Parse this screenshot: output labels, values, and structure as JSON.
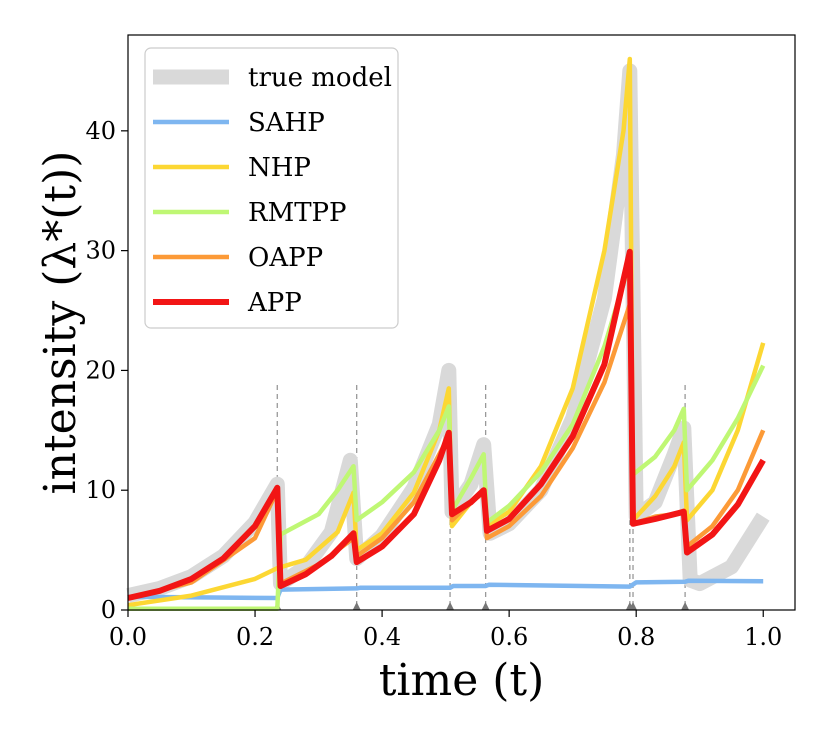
{
  "chart_data": {
    "type": "line",
    "title": "",
    "xlabel": "time (t)",
    "ylabel": "intensity (λ*(t))",
    "xlim": [
      0.0,
      1.05
    ],
    "ylim": [
      0,
      48
    ],
    "xticks": [
      0.0,
      0.2,
      0.4,
      0.6,
      0.8,
      1.0
    ],
    "xtick_labels": [
      "0.0",
      "0.2",
      "0.4",
      "0.6",
      "0.8",
      "1.0"
    ],
    "yticks": [
      0,
      10,
      20,
      30,
      40
    ],
    "ytick_labels": [
      "0",
      "10",
      "20",
      "30",
      "40"
    ],
    "grid": false,
    "legend_position": "top-left",
    "event_times": [
      0.235,
      0.36,
      0.507,
      0.563,
      0.79,
      0.795,
      0.877
    ],
    "series": [
      {
        "name": "true model",
        "color": "#d9d9d9",
        "style": "thick",
        "points": [
          [
            0.0,
            1.2
          ],
          [
            0.05,
            1.8
          ],
          [
            0.1,
            2.8
          ],
          [
            0.15,
            4.5
          ],
          [
            0.2,
            7.3
          ],
          [
            0.235,
            10.5
          ],
          [
            0.24,
            2.2
          ],
          [
            0.28,
            3.6
          ],
          [
            0.32,
            6.5
          ],
          [
            0.35,
            12.5
          ],
          [
            0.36,
            4.3
          ],
          [
            0.4,
            6.2
          ],
          [
            0.45,
            10.2
          ],
          [
            0.49,
            15.5
          ],
          [
            0.505,
            20.0
          ],
          [
            0.51,
            8.2
          ],
          [
            0.54,
            10.5
          ],
          [
            0.56,
            13.8
          ],
          [
            0.57,
            6.4
          ],
          [
            0.6,
            7.2
          ],
          [
            0.65,
            10.0
          ],
          [
            0.7,
            16.0
          ],
          [
            0.75,
            26.0
          ],
          [
            0.78,
            38.0
          ],
          [
            0.79,
            45.0
          ],
          [
            0.8,
            7.8
          ],
          [
            0.83,
            9.0
          ],
          [
            0.86,
            13.0
          ],
          [
            0.875,
            15.2
          ],
          [
            0.885,
            2.5
          ],
          [
            0.9,
            2.2
          ],
          [
            0.95,
            3.6
          ],
          [
            1.0,
            7.8
          ]
        ]
      },
      {
        "name": "SAHP",
        "color": "#7eb6f0",
        "style": "normal",
        "points": [
          [
            0.0,
            1.1
          ],
          [
            0.235,
            1.0
          ],
          [
            0.24,
            1.7
          ],
          [
            0.36,
            1.8
          ],
          [
            0.365,
            1.85
          ],
          [
            0.507,
            1.85
          ],
          [
            0.512,
            2.0
          ],
          [
            0.563,
            2.0
          ],
          [
            0.568,
            2.1
          ],
          [
            0.79,
            1.95
          ],
          [
            0.8,
            2.3
          ],
          [
            0.877,
            2.35
          ],
          [
            0.882,
            2.45
          ],
          [
            1.0,
            2.4
          ]
        ]
      },
      {
        "name": "NHP",
        "color": "#fcd733",
        "style": "normal",
        "points": [
          [
            0.0,
            0.4
          ],
          [
            0.1,
            1.2
          ],
          [
            0.2,
            2.6
          ],
          [
            0.235,
            3.5
          ],
          [
            0.28,
            4.2
          ],
          [
            0.33,
            6.5
          ],
          [
            0.355,
            9.8
          ],
          [
            0.36,
            5.0
          ],
          [
            0.4,
            6.4
          ],
          [
            0.45,
            9.8
          ],
          [
            0.49,
            15.0
          ],
          [
            0.505,
            18.5
          ],
          [
            0.51,
            7.0
          ],
          [
            0.54,
            9.0
          ],
          [
            0.56,
            10.0
          ],
          [
            0.565,
            7.0
          ],
          [
            0.6,
            8.2
          ],
          [
            0.65,
            12.0
          ],
          [
            0.7,
            18.5
          ],
          [
            0.75,
            30.0
          ],
          [
            0.78,
            40.0
          ],
          [
            0.79,
            46.0
          ],
          [
            0.795,
            7.5
          ],
          [
            0.83,
            9.5
          ],
          [
            0.86,
            12.0
          ],
          [
            0.875,
            14.0
          ],
          [
            0.88,
            7.5
          ],
          [
            0.92,
            10.0
          ],
          [
            0.96,
            15.0
          ],
          [
            1.0,
            22.3
          ]
        ]
      },
      {
        "name": "RMTPP",
        "color": "#bff774",
        "style": "normal",
        "points": [
          [
            0.0,
            0.1
          ],
          [
            0.235,
            0.1
          ],
          [
            0.24,
            6.3
          ],
          [
            0.3,
            8.0
          ],
          [
            0.33,
            10.0
          ],
          [
            0.355,
            12.0
          ],
          [
            0.36,
            7.5
          ],
          [
            0.4,
            9.0
          ],
          [
            0.45,
            11.5
          ],
          [
            0.49,
            15.0
          ],
          [
            0.505,
            17.0
          ],
          [
            0.51,
            8.3
          ],
          [
            0.54,
            11.0
          ],
          [
            0.56,
            13.0
          ],
          [
            0.565,
            7.3
          ],
          [
            0.6,
            8.7
          ],
          [
            0.65,
            11.5
          ],
          [
            0.7,
            15.5
          ],
          [
            0.75,
            22.0
          ],
          [
            0.79,
            29.0
          ],
          [
            0.795,
            11.3
          ],
          [
            0.83,
            12.8
          ],
          [
            0.86,
            15.0
          ],
          [
            0.875,
            16.8
          ],
          [
            0.88,
            10.0
          ],
          [
            0.92,
            12.5
          ],
          [
            0.96,
            16.0
          ],
          [
            1.0,
            20.4
          ]
        ]
      },
      {
        "name": "OAPP",
        "color": "#fc9a37",
        "style": "normal",
        "points": [
          [
            0.0,
            1.0
          ],
          [
            0.1,
            2.3
          ],
          [
            0.2,
            6.0
          ],
          [
            0.235,
            10.0
          ],
          [
            0.24,
            2.2
          ],
          [
            0.3,
            3.8
          ],
          [
            0.355,
            6.0
          ],
          [
            0.36,
            4.5
          ],
          [
            0.4,
            6.0
          ],
          [
            0.45,
            9.0
          ],
          [
            0.505,
            14.5
          ],
          [
            0.51,
            7.5
          ],
          [
            0.54,
            9.0
          ],
          [
            0.56,
            9.8
          ],
          [
            0.565,
            6.0
          ],
          [
            0.6,
            7.0
          ],
          [
            0.65,
            9.5
          ],
          [
            0.7,
            13.5
          ],
          [
            0.75,
            19.0
          ],
          [
            0.79,
            25.5
          ],
          [
            0.795,
            7.2
          ],
          [
            0.83,
            7.8
          ],
          [
            0.86,
            8.0
          ],
          [
            0.875,
            8.3
          ],
          [
            0.88,
            5.3
          ],
          [
            0.92,
            7.0
          ],
          [
            0.96,
            10.0
          ],
          [
            1.0,
            15.0
          ]
        ]
      },
      {
        "name": "APP",
        "color": "#f21515",
        "style": "bold",
        "points": [
          [
            0.0,
            1.0
          ],
          [
            0.05,
            1.6
          ],
          [
            0.1,
            2.6
          ],
          [
            0.15,
            4.3
          ],
          [
            0.2,
            7.0
          ],
          [
            0.235,
            10.2
          ],
          [
            0.24,
            2.0
          ],
          [
            0.28,
            3.0
          ],
          [
            0.32,
            4.5
          ],
          [
            0.355,
            6.4
          ],
          [
            0.36,
            4.0
          ],
          [
            0.4,
            5.3
          ],
          [
            0.45,
            8.0
          ],
          [
            0.49,
            12.5
          ],
          [
            0.505,
            14.8
          ],
          [
            0.51,
            8.0
          ],
          [
            0.54,
            9.0
          ],
          [
            0.56,
            10.0
          ],
          [
            0.565,
            6.6
          ],
          [
            0.6,
            7.6
          ],
          [
            0.65,
            10.5
          ],
          [
            0.7,
            14.5
          ],
          [
            0.75,
            20.5
          ],
          [
            0.79,
            29.9
          ],
          [
            0.795,
            7.2
          ],
          [
            0.83,
            7.6
          ],
          [
            0.86,
            8.0
          ],
          [
            0.875,
            8.2
          ],
          [
            0.88,
            4.8
          ],
          [
            0.92,
            6.3
          ],
          [
            0.96,
            8.8
          ],
          [
            1.0,
            12.5
          ]
        ]
      }
    ]
  }
}
